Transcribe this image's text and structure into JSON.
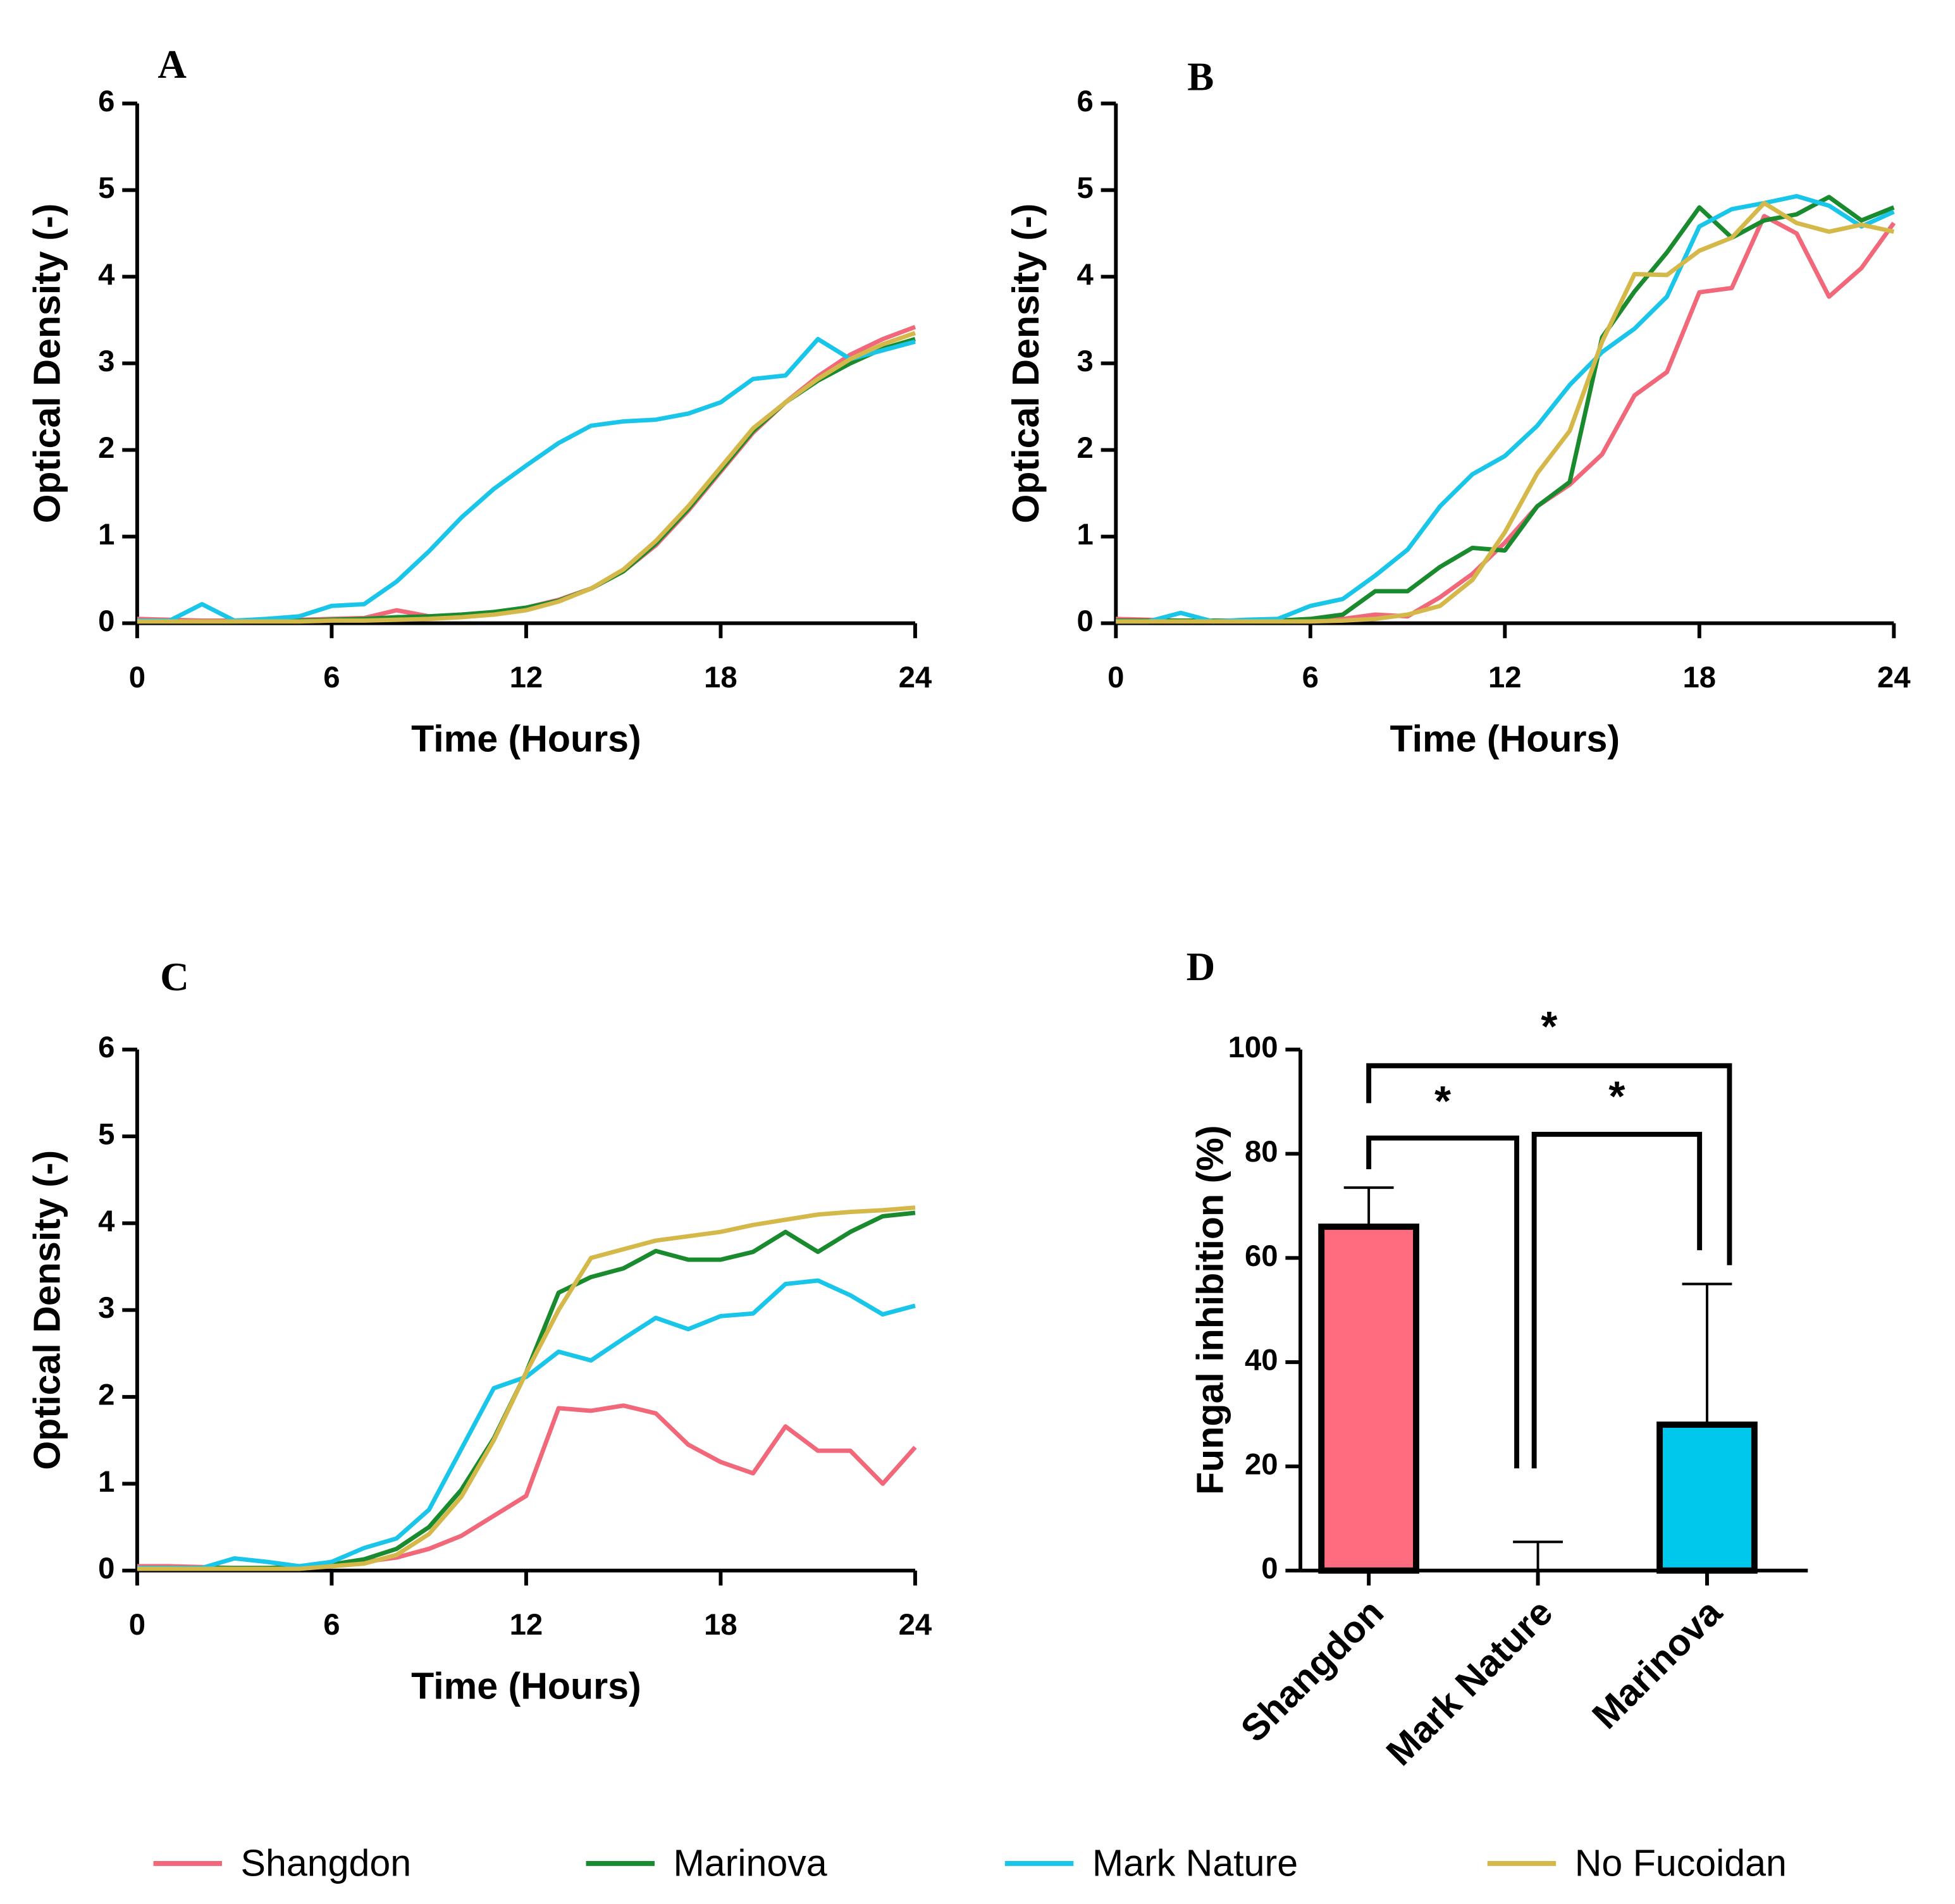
{
  "chart_data": [
    {
      "type": "line",
      "label": "A",
      "xlabel": "Time (Hours)",
      "ylabel": "Optical Density (-)",
      "x": [
        0,
        1,
        2,
        3,
        4,
        5,
        6,
        7,
        8,
        9,
        10,
        11,
        12,
        13,
        14,
        15,
        16,
        17,
        18,
        19,
        20,
        21,
        22,
        23,
        24
      ],
      "xlim": [
        0,
        24
      ],
      "xticks": [
        0,
        6,
        12,
        18,
        24
      ],
      "ylim": [
        0,
        6
      ],
      "yticks": [
        0,
        1,
        2,
        3,
        4,
        5,
        6
      ],
      "series": [
        {
          "name": "Shangdon",
          "color": "#f0687a",
          "values": [
            0.05,
            0.04,
            0.03,
            0.03,
            0.04,
            0.04,
            0.05,
            0.06,
            0.15,
            0.08,
            0.1,
            0.12,
            0.18,
            0.27,
            0.4,
            0.6,
            0.9,
            1.3,
            1.75,
            2.2,
            2.55,
            2.85,
            3.1,
            3.28,
            3.42
          ]
        },
        {
          "name": "Marinova",
          "color": "#1a8a2e",
          "values": [
            0.02,
            0.02,
            0.02,
            0.02,
            0.03,
            0.03,
            0.04,
            0.05,
            0.07,
            0.08,
            0.1,
            0.13,
            0.18,
            0.26,
            0.4,
            0.6,
            0.92,
            1.32,
            1.77,
            2.22,
            2.55,
            2.8,
            3.0,
            3.17,
            3.28
          ]
        },
        {
          "name": "Mark Nature",
          "color": "#19c6ea",
          "values": [
            0.03,
            0.03,
            0.22,
            0.03,
            0.05,
            0.08,
            0.2,
            0.22,
            0.48,
            0.83,
            1.22,
            1.55,
            1.82,
            2.08,
            2.28,
            2.33,
            2.35,
            2.42,
            2.55,
            2.82,
            2.86,
            3.28,
            3.05,
            3.15,
            3.25
          ]
        },
        {
          "name": "No Fucoidan",
          "color": "#d4b84a",
          "values": [
            0.02,
            0.02,
            0.02,
            0.02,
            0.02,
            0.02,
            0.03,
            0.03,
            0.04,
            0.05,
            0.07,
            0.1,
            0.15,
            0.25,
            0.4,
            0.62,
            0.95,
            1.35,
            1.8,
            2.25,
            2.55,
            2.82,
            3.05,
            3.22,
            3.35
          ]
        }
      ]
    },
    {
      "type": "line",
      "label": "B",
      "xlabel": "Time (Hours)",
      "ylabel": "Optical Density (-)",
      "x": [
        0,
        1,
        2,
        3,
        4,
        5,
        6,
        7,
        8,
        9,
        10,
        11,
        12,
        13,
        14,
        15,
        16,
        17,
        18,
        19,
        20,
        21,
        22,
        23,
        24
      ],
      "xlim": [
        0,
        24
      ],
      "xticks": [
        0,
        6,
        12,
        18,
        24
      ],
      "ylim": [
        0,
        6
      ],
      "yticks": [
        0,
        1,
        2,
        3,
        4,
        5,
        6
      ],
      "series": [
        {
          "name": "Shangdon",
          "color": "#f0687a",
          "values": [
            0.05,
            0.04,
            0.03,
            0.03,
            0.03,
            0.03,
            0.04,
            0.05,
            0.1,
            0.08,
            0.3,
            0.57,
            0.93,
            1.35,
            1.6,
            1.95,
            2.63,
            2.9,
            3.82,
            3.87,
            4.7,
            4.5,
            3.77,
            4.1,
            4.62
          ]
        },
        {
          "name": "Marinova",
          "color": "#1a8a2e",
          "values": [
            0.03,
            0.03,
            0.03,
            0.03,
            0.03,
            0.03,
            0.05,
            0.1,
            0.37,
            0.37,
            0.65,
            0.87,
            0.84,
            1.35,
            1.63,
            3.3,
            3.83,
            4.28,
            4.8,
            4.45,
            4.65,
            4.72,
            4.92,
            4.65,
            4.8
          ]
        },
        {
          "name": "Mark Nature",
          "color": "#19c6ea",
          "values": [
            0.02,
            0.02,
            0.12,
            0.02,
            0.04,
            0.05,
            0.2,
            0.28,
            0.55,
            0.85,
            1.35,
            1.72,
            1.93,
            2.28,
            2.75,
            3.13,
            3.4,
            3.77,
            4.58,
            4.78,
            4.85,
            4.93,
            4.82,
            4.58,
            4.75
          ]
        },
        {
          "name": "No Fucoidan",
          "color": "#d4b84a",
          "values": [
            0.02,
            0.02,
            0.02,
            0.02,
            0.02,
            0.02,
            0.02,
            0.03,
            0.05,
            0.1,
            0.2,
            0.5,
            1.05,
            1.73,
            2.22,
            3.25,
            4.03,
            4.02,
            4.3,
            4.45,
            4.85,
            4.62,
            4.52,
            4.6,
            4.52
          ]
        }
      ]
    },
    {
      "type": "line",
      "label": "C",
      "xlabel": "Time (Hours)",
      "ylabel": "Optical Density (-)",
      "x": [
        0,
        1,
        2,
        3,
        4,
        5,
        6,
        7,
        8,
        9,
        10,
        11,
        12,
        13,
        14,
        15,
        16,
        17,
        18,
        19,
        20,
        21,
        22,
        23,
        24
      ],
      "xlim": [
        0,
        24
      ],
      "xticks": [
        0,
        6,
        12,
        18,
        24
      ],
      "ylim": [
        0,
        6
      ],
      "yticks": [
        0,
        1,
        2,
        3,
        4,
        5,
        6
      ],
      "series": [
        {
          "name": "Shangdon",
          "color": "#f0687a",
          "values": [
            0.05,
            0.05,
            0.04,
            0.03,
            0.03,
            0.04,
            0.06,
            0.1,
            0.15,
            0.25,
            0.4,
            0.63,
            0.86,
            1.87,
            1.84,
            1.9,
            1.81,
            1.45,
            1.25,
            1.12,
            1.66,
            1.38,
            1.38,
            1.0,
            1.42
          ]
        },
        {
          "name": "Marinova",
          "color": "#1a8a2e",
          "values": [
            0.03,
            0.03,
            0.03,
            0.03,
            0.03,
            0.04,
            0.07,
            0.13,
            0.25,
            0.5,
            0.93,
            1.52,
            2.28,
            3.2,
            3.38,
            3.48,
            3.68,
            3.58,
            3.58,
            3.67,
            3.9,
            3.67,
            3.9,
            4.08,
            4.12
          ]
        },
        {
          "name": "Mark Nature",
          "color": "#19c6ea",
          "values": [
            0.03,
            0.03,
            0.03,
            0.14,
            0.1,
            0.05,
            0.1,
            0.26,
            0.37,
            0.7,
            1.4,
            2.1,
            2.23,
            2.52,
            2.42,
            2.67,
            2.91,
            2.78,
            2.93,
            2.96,
            3.3,
            3.34,
            3.17,
            2.95,
            3.05
          ]
        },
        {
          "name": "No Fucoidan",
          "color": "#d4b84a",
          "values": [
            0.02,
            0.02,
            0.02,
            0.02,
            0.02,
            0.02,
            0.05,
            0.08,
            0.18,
            0.42,
            0.85,
            1.5,
            2.28,
            3.0,
            3.6,
            3.7,
            3.8,
            3.85,
            3.9,
            3.98,
            4.04,
            4.1,
            4.13,
            4.15,
            4.18
          ]
        }
      ]
    },
    {
      "type": "bar",
      "label": "D",
      "ylabel": "Fungal inhibition (%)",
      "categories": [
        "Shangdon",
        "Mark Nature",
        "Marinova"
      ],
      "values": [
        66,
        0,
        28
      ],
      "errors": [
        7.5,
        5.5,
        27
      ],
      "colors": [
        "#ff6b7f",
        "#ffffff",
        "#00c8ec"
      ],
      "ylim": [
        0,
        100
      ],
      "yticks": [
        0,
        20,
        40,
        60,
        80,
        100
      ],
      "significance": [
        {
          "from": "Shangdon",
          "to": "Marinova",
          "label": "*"
        },
        {
          "from": "Shangdon",
          "to": "Mark Nature",
          "label": "*"
        },
        {
          "from": "Mark Nature",
          "to": "Marinova",
          "label": "*"
        }
      ]
    }
  ]
}
